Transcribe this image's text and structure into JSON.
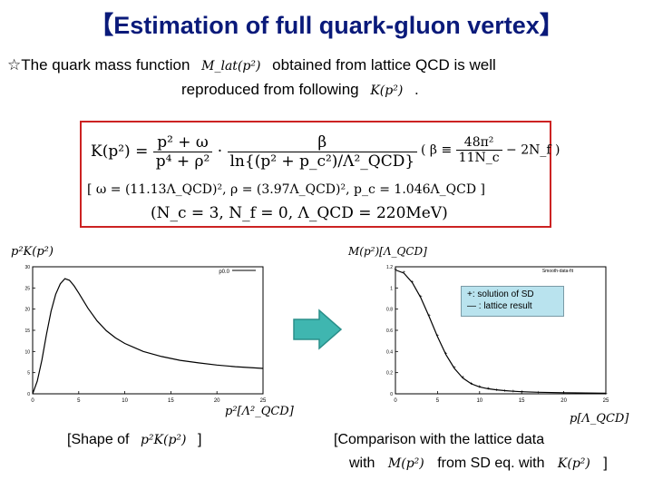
{
  "title": "【Estimation of full quark-gluon vertex】",
  "intro": {
    "star": "☆",
    "line1_a": "The quark mass function",
    "line1_math": "M_lat(p²)",
    "line1_b": "obtained from lattice QCD is well",
    "line2_a": "reproduced from following",
    "line2_math": "K(p²)",
    "line2_b": "."
  },
  "formula": {
    "k_lhs": "K(p²) =",
    "k_num1": "p² + ω",
    "k_den1": "p⁴ + ρ²",
    "k_dot": "·",
    "k_num2": "β",
    "k_den2": "ln{(p² + p_c²)/Λ²_QCD}",
    "beta_def_lhs": "β ≡",
    "beta_num1": "48π²",
    "beta_den1": "11N_c",
    "beta_minus": "−",
    "beta_num2": "",
    "beta_den2": "2N_f",
    "params": "ω = (11.13Λ_QCD)²,  ρ = (3.97Λ_QCD)²,  p_c = 1.046Λ_QCD",
    "consts": "(N_c = 3,   N_f = 0,   Λ_QCD = 220MeV)"
  },
  "left_plot": {
    "ylabel": "p²K(p²)",
    "xlabel": "p²[Λ²_QCD]",
    "legend": "p0.0",
    "xticks": [
      "0",
      "5",
      "10",
      "15",
      "20",
      "25"
    ],
    "yticks": [
      "0",
      "5",
      "10",
      "15",
      "20",
      "25",
      "30"
    ],
    "caption_a": "[Shape of",
    "caption_math": "p²K(p²)",
    "caption_b": "]"
  },
  "right_plot": {
    "ylabel": "M(p²)[Λ_QCD]",
    "xlabel": "p[Λ_QCD]",
    "legend_top": "Smooth-data-fit",
    "legend_plus": "+: solution of SD",
    "legend_line": "—  : lattice result",
    "xticks": [
      "0",
      "5",
      "10",
      "15",
      "20",
      "25"
    ],
    "yticks": [
      "0",
      "0.2",
      "0.4",
      "0.6",
      "0.8",
      "1",
      "1.2"
    ],
    "caption_line1": "[Comparison with the lattice data",
    "caption_with": "with",
    "caption_math1": "M(p²)",
    "caption_mid": "from SD eq. with",
    "caption_math2": "K(p²)",
    "caption_end": "]"
  },
  "colors": {
    "title": "#0a1a7a",
    "box_border": "#cc2222",
    "arrow_fill": "#3fb6b0",
    "legend_bg": "#b9e3ee"
  },
  "chart_data": [
    {
      "type": "line",
      "xlabel": "p²[Λ²_QCD]",
      "ylabel": "p²K(p²)",
      "xlim": [
        0,
        25
      ],
      "ylim": [
        0,
        30
      ],
      "series": [
        {
          "name": "p0.0",
          "x": [
            0,
            0.5,
            1,
            1.5,
            2,
            2.5,
            3,
            3.5,
            4,
            4.5,
            5,
            6,
            7,
            8,
            9,
            10,
            12,
            14,
            16,
            18,
            20,
            22,
            25
          ],
          "y": [
            0,
            3,
            8,
            14,
            19.5,
            23.5,
            26,
            27.2,
            26.8,
            25.5,
            23.8,
            20.2,
            17.2,
            14.9,
            13.2,
            11.9,
            10.0,
            8.8,
            7.9,
            7.3,
            6.8,
            6.4,
            6.0
          ]
        }
      ]
    },
    {
      "type": "line",
      "xlabel": "p[Λ_QCD]",
      "ylabel": "M(p²)[Λ_QCD]",
      "xlim": [
        0,
        25
      ],
      "ylim": [
        0,
        1.2
      ],
      "series": [
        {
          "name": "solution of SD",
          "x": [
            0,
            1,
            2,
            3,
            4,
            5,
            6,
            7,
            8,
            9,
            10,
            11,
            12,
            13,
            14,
            15,
            17,
            20,
            25
          ],
          "y": [
            1.18,
            1.15,
            1.06,
            0.92,
            0.74,
            0.55,
            0.38,
            0.25,
            0.16,
            0.1,
            0.07,
            0.05,
            0.04,
            0.03,
            0.025,
            0.02,
            0.015,
            0.01,
            0.006
          ]
        },
        {
          "name": "lattice result",
          "x": [
            0,
            1,
            2,
            3,
            4,
            5,
            6,
            7,
            8,
            9,
            10,
            11,
            12,
            13,
            14,
            15,
            17,
            20,
            25
          ],
          "y": [
            1.17,
            1.14,
            1.05,
            0.91,
            0.73,
            0.54,
            0.37,
            0.24,
            0.15,
            0.095,
            0.065,
            0.048,
            0.038,
            0.03,
            0.024,
            0.02,
            0.015,
            0.01,
            0.006
          ]
        }
      ]
    }
  ]
}
